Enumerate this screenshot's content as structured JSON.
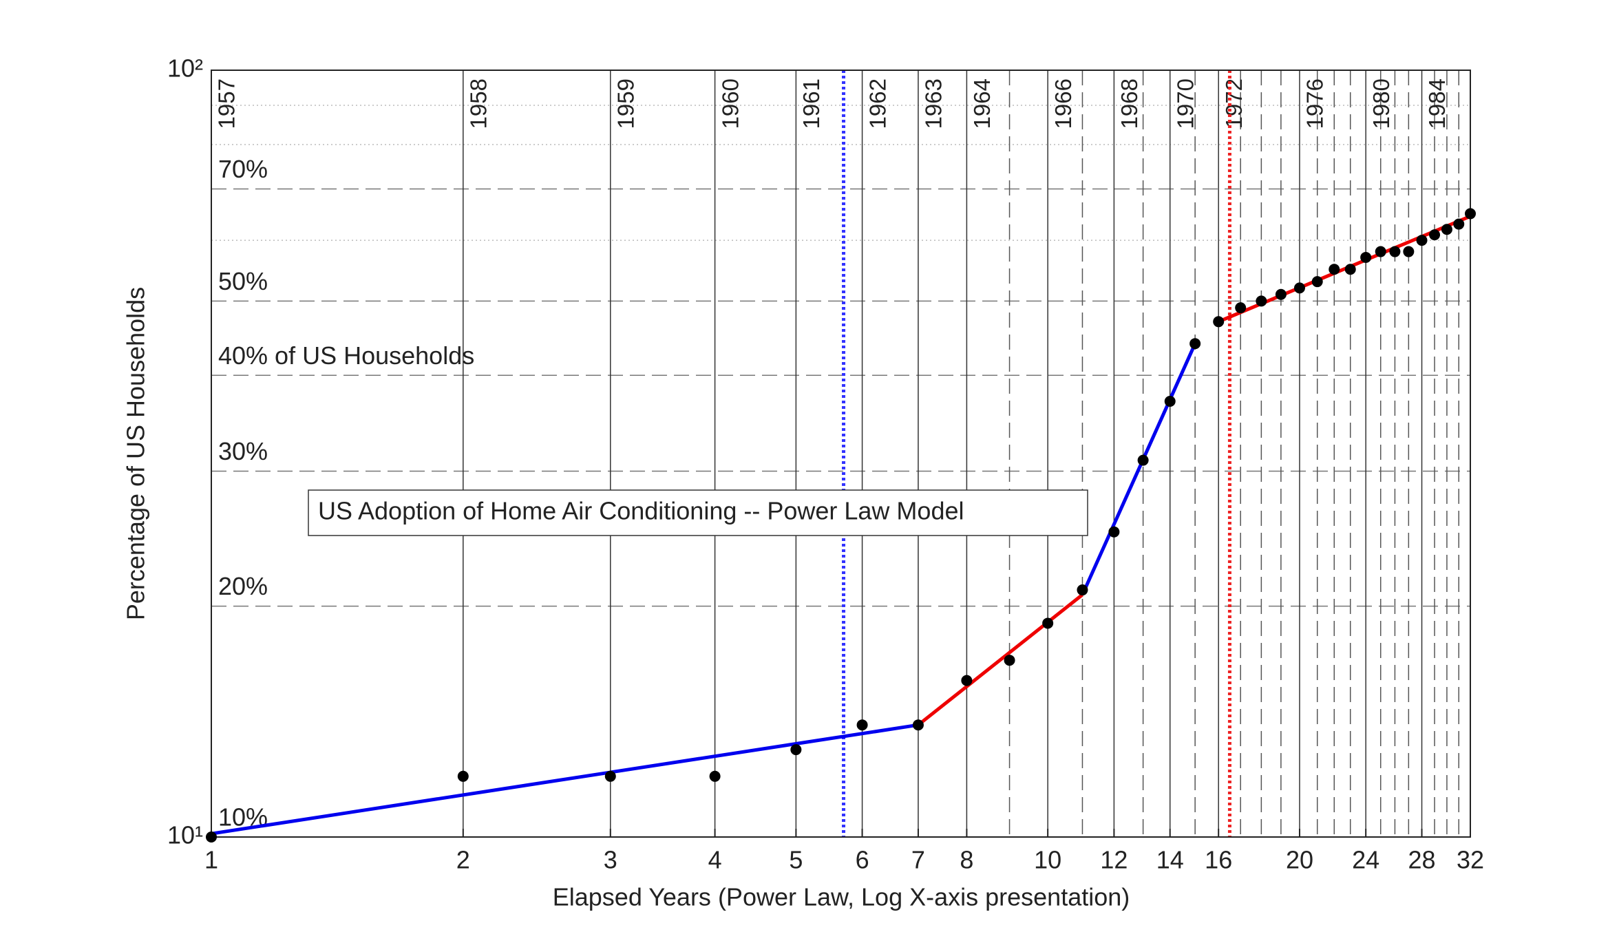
{
  "chart_data": {
    "type": "scatter",
    "title": "US Adoption of Home Air Conditioning -- Power Law Model",
    "x_label": "Elapsed Years (Power Law, Log X-axis presentation)",
    "y_label": "Percentage of US Households",
    "log_x": true,
    "log_y": true,
    "xlim": [
      1,
      32
    ],
    "ylim": [
      10,
      100
    ],
    "xticks": [
      1,
      2,
      3,
      4,
      5,
      6,
      7,
      8,
      10,
      12,
      14,
      16,
      20,
      24,
      28,
      32
    ],
    "yticks": [
      {
        "value": 10,
        "label": "10¹"
      },
      {
        "value": 100,
        "label": "10²"
      }
    ],
    "point_color": "#000000",
    "x": [
      1,
      2,
      3,
      4,
      5,
      6,
      7,
      8,
      9,
      10,
      11,
      12,
      13,
      14,
      15,
      16,
      17,
      18,
      19,
      20,
      21,
      22,
      23,
      24,
      25,
      26,
      27,
      28,
      29,
      30,
      31,
      32
    ],
    "values": [
      10,
      12,
      12,
      12,
      13,
      14,
      14,
      16,
      17,
      19,
      21,
      25,
      31,
      37,
      44,
      47,
      49,
      50,
      51,
      52,
      53,
      55,
      55,
      57,
      58,
      58,
      58,
      60,
      61,
      62,
      63,
      65
    ],
    "fits": [
      {
        "color": "#0000ee",
        "x": [
          1,
          7
        ],
        "values": [
          10.1,
          14
        ]
      },
      {
        "color": "#ee0000",
        "x": [
          7,
          11
        ],
        "values": [
          14,
          20.7
        ]
      },
      {
        "color": "#0000ee",
        "x": [
          11,
          15
        ],
        "values": [
          20.7,
          44
        ]
      },
      {
        "color": "#ee0000",
        "x": [
          16,
          32
        ],
        "values": [
          47,
          64.5
        ]
      }
    ],
    "markers": [
      {
        "x": 5.7,
        "color": "#3333ff"
      },
      {
        "x": 16.5,
        "color": "#ee2222"
      }
    ],
    "year_labels": [
      {
        "x": 1,
        "label": "1957"
      },
      {
        "x": 2,
        "label": "1958"
      },
      {
        "x": 3,
        "label": "1959"
      },
      {
        "x": 4,
        "label": "1960"
      },
      {
        "x": 5,
        "label": "1961"
      },
      {
        "x": 6,
        "label": "1962"
      },
      {
        "x": 7,
        "label": "1963"
      },
      {
        "x": 8,
        "label": "1964"
      },
      {
        "x": 10,
        "label": "1966"
      },
      {
        "x": 12,
        "label": "1968"
      },
      {
        "x": 14,
        "label": "1970"
      },
      {
        "x": 16,
        "label": "1972"
      },
      {
        "x": 20,
        "label": "1976"
      },
      {
        "x": 24,
        "label": "1980"
      },
      {
        "x": 28,
        "label": "1984"
      }
    ],
    "y_grid_dashed": [
      20,
      30,
      40,
      50,
      70
    ],
    "y_grid_dotted": [
      60,
      80,
      90
    ],
    "y_annotations": [
      {
        "value": 10,
        "label": "10%"
      },
      {
        "value": 20,
        "label": "20%"
      },
      {
        "value": 30,
        "label": "30%"
      },
      {
        "value": 40,
        "label": "40% of US Households"
      },
      {
        "value": 50,
        "label": "50%"
      },
      {
        "value": 70,
        "label": "70%"
      }
    ]
  }
}
